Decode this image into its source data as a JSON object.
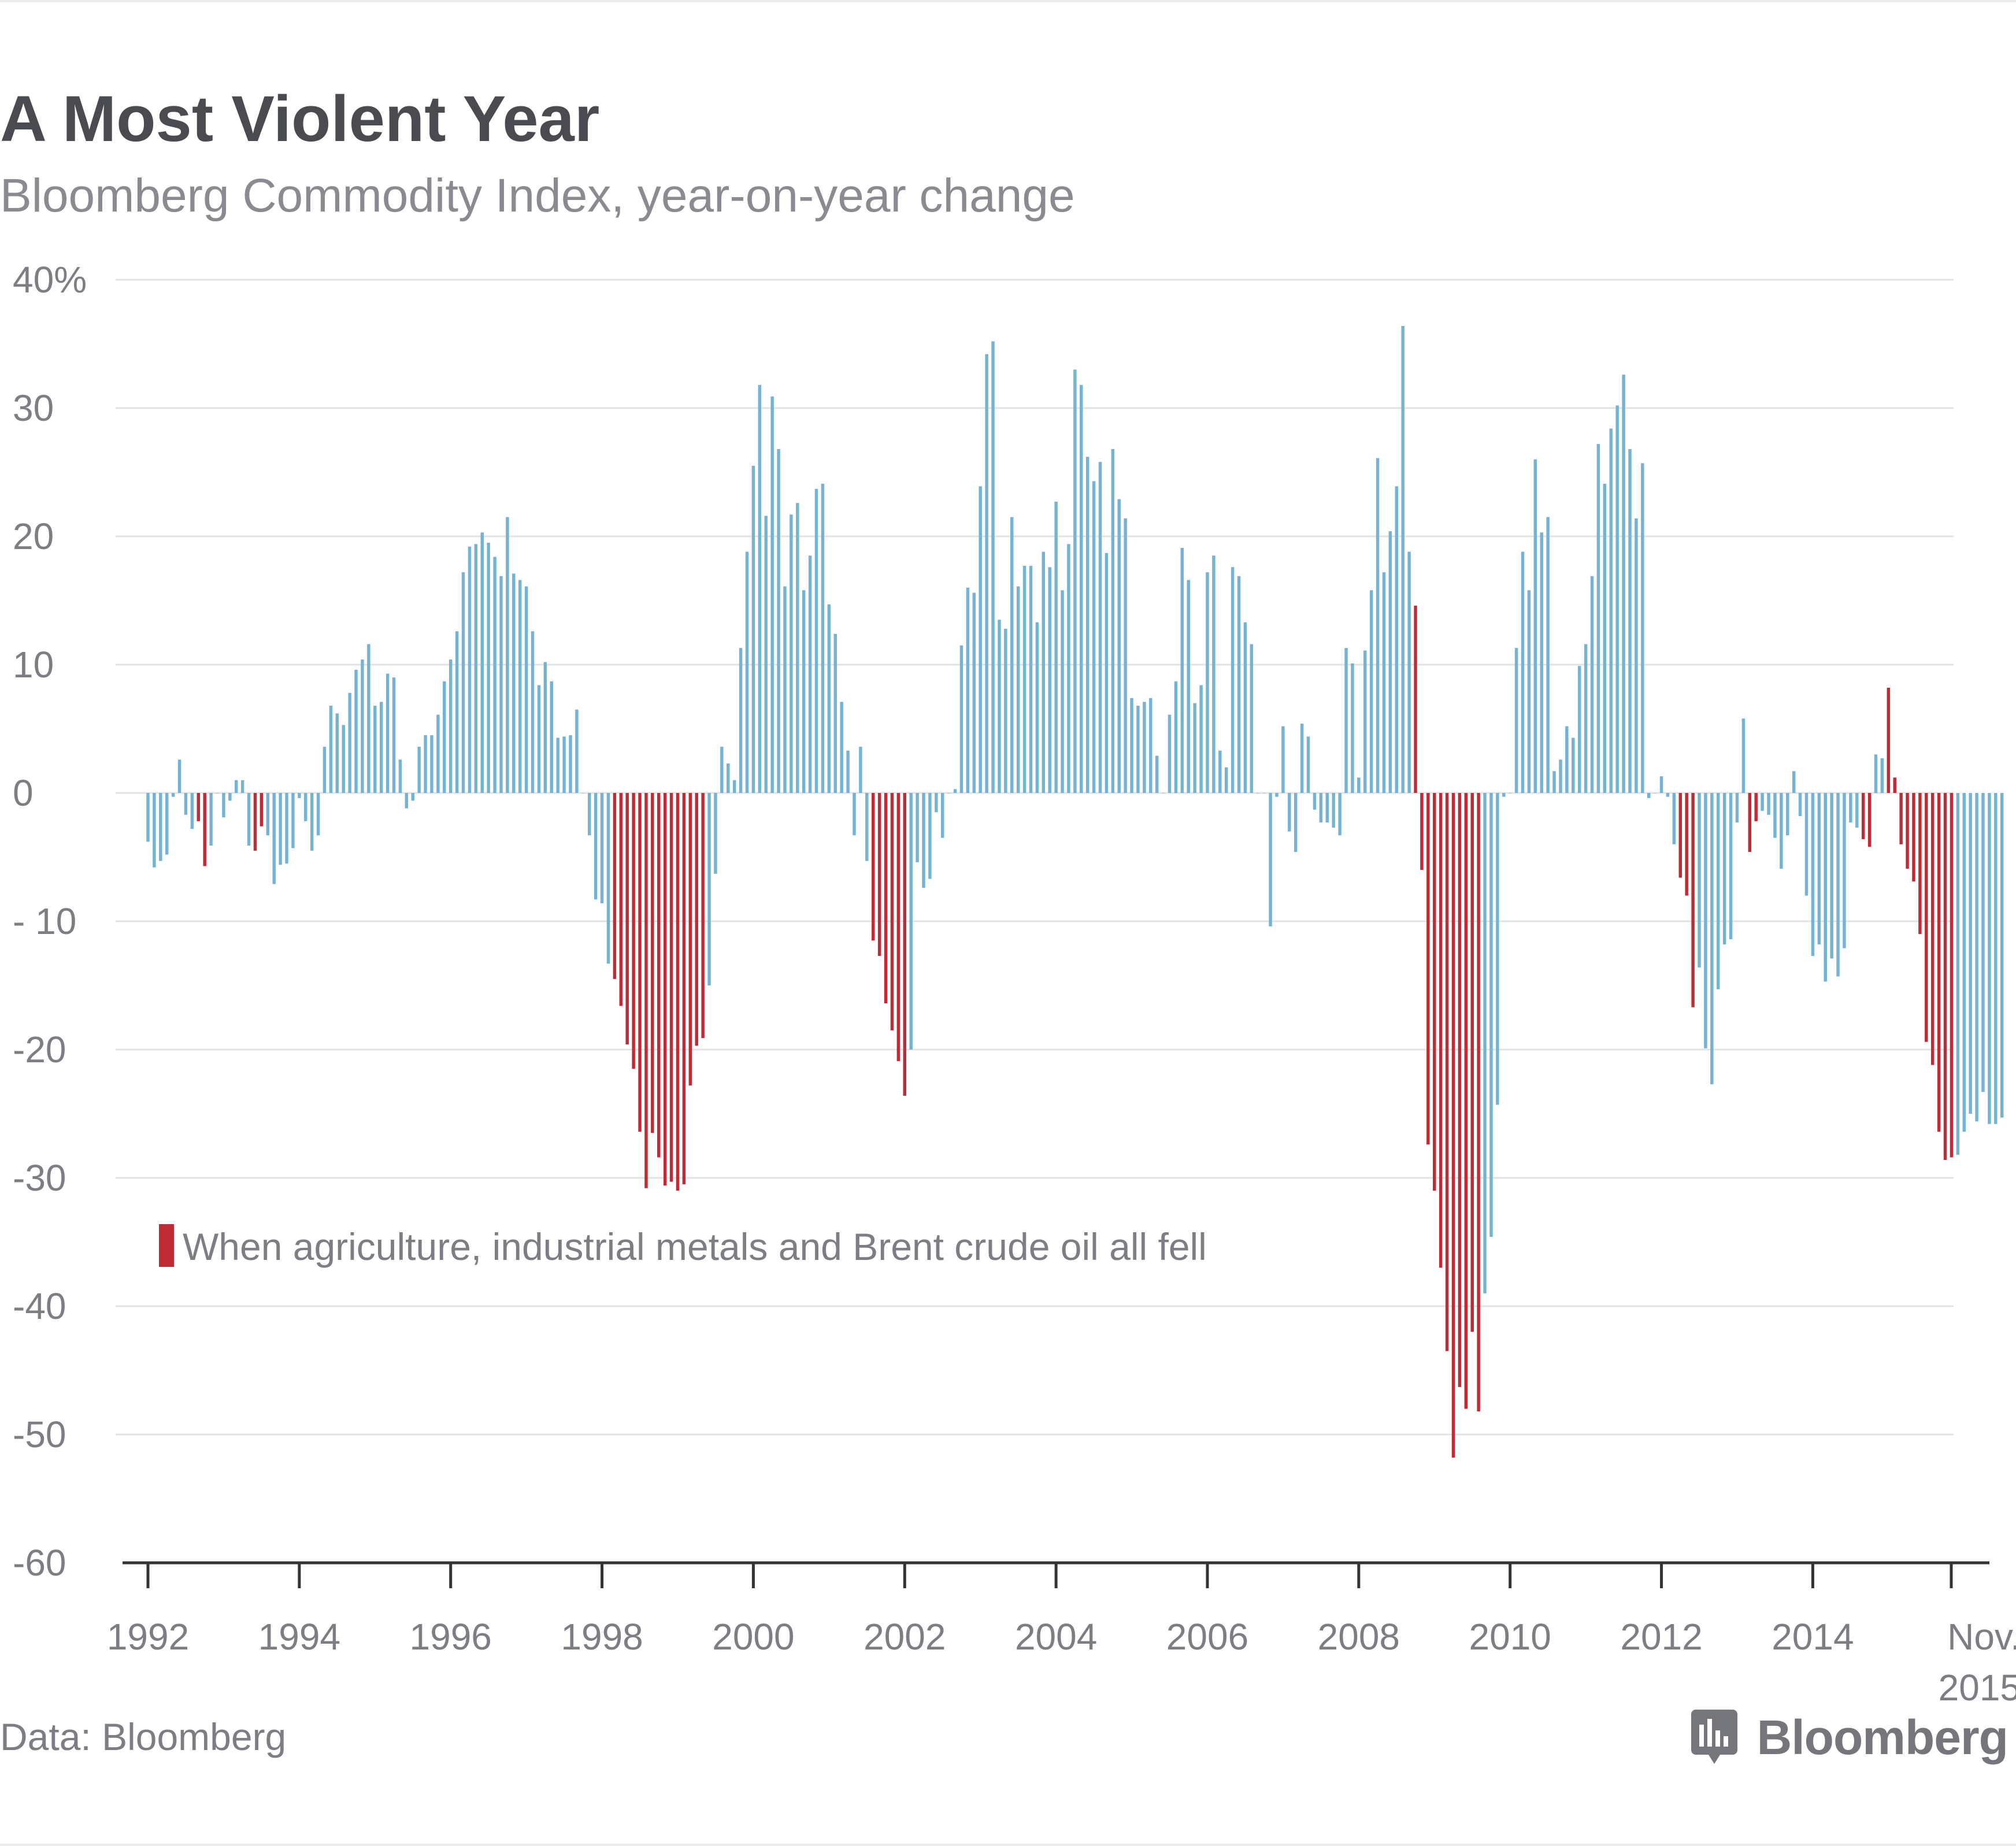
{
  "header": {
    "title": "A Most Violent Year",
    "subtitle": "Bloomberg Commodity Index, year-on-year change"
  },
  "footer": {
    "source": "Data: Bloomberg",
    "brand": "Bloomberg",
    "brand_icon": "bloomberg-chart-icon"
  },
  "colors": {
    "positive_or_mixed": "#74b3d4",
    "all_fell": "#c12b35",
    "grid": "#e3e3e3",
    "axis": "#333333",
    "text": "#7d7e83",
    "title": "#4a4b50"
  },
  "chart_data": {
    "type": "bar",
    "title": "A Most Violent Year",
    "subtitle": "Bloomberg Commodity Index, year-on-year change",
    "xlabel": "",
    "ylabel": "",
    "ylim": [
      -60,
      40
    ],
    "y_ticks": [
      40,
      30,
      20,
      10,
      0,
      -10,
      -20,
      -30,
      -40,
      -50,
      -60
    ],
    "y_tick_labels": [
      "40%",
      "30",
      "20",
      "10",
      "0",
      "- 10",
      "-20",
      "-30",
      "-40",
      "-50",
      "-60"
    ],
    "x_tick_labels": [
      "1992",
      "1994",
      "1996",
      "1998",
      "2000",
      "2002",
      "2004",
      "2006",
      "2008",
      "2010",
      "2012",
      "2014",
      "Nov. 2015"
    ],
    "x_tick_positions": [
      1992,
      1994,
      1996,
      1998,
      2000,
      2002,
      2004,
      2006,
      2008,
      2010,
      2012,
      2014,
      2015.83
    ],
    "xlim": [
      1992,
      2015.83
    ],
    "grid": true,
    "legend": {
      "label": "When agriculture, industrial metals and Brent crude oil all fell",
      "placement": "lower-left"
    },
    "frequency": "monthly",
    "series": [
      {
        "start": "1992-01",
        "values": [
          -3.8,
          -5.8,
          -5.3,
          -4.8,
          -0.3,
          2.6,
          -1.7,
          -2.8,
          -2.2,
          -5.7,
          -4.1,
          0,
          -1.9,
          -0.6,
          1.0,
          1.0,
          -4.1,
          -4.5,
          -2.6,
          -3.3,
          -7.1,
          -5.6,
          -5.5,
          -4.3,
          -0.4,
          -2.2,
          -4.5,
          -3.3,
          3.6,
          6.8,
          6.2,
          5.3,
          7.8,
          9.6,
          10.4,
          11.6,
          6.8,
          7.1,
          9.3,
          9.0,
          2.6,
          -1.2,
          -0.6,
          3.6,
          4.5,
          4.5,
          6.1,
          8.7,
          10.4,
          12.6,
          17.2,
          19.2,
          19.4,
          20.3,
          19.5,
          18.4,
          16.9,
          21.5,
          17.1,
          16.6,
          16.1,
          12.6,
          8.4,
          10.2,
          8.7,
          4.3,
          4.4,
          4.5,
          6.5,
          0,
          -3.3,
          -8.3,
          -8.6,
          -13.3,
          -14.5,
          -16.6,
          -19.6,
          -21.5,
          -26.4,
          -30.8,
          -26.5,
          -28.4,
          -30.6,
          -30.3,
          -31.0,
          -30.5,
          -22.8,
          -19.7,
          -19.1,
          -15.0,
          -6.3,
          3.6,
          2.3,
          1.0,
          11.3,
          18.8,
          25.5,
          31.8,
          21.6,
          30.9,
          26.8,
          16.1,
          21.7,
          22.6,
          15.8,
          18.5,
          23.7,
          24.1,
          14.7,
          12.4,
          7.1,
          3.3,
          -3.3,
          3.6,
          -5.3,
          -11.5,
          -12.7,
          -16.4,
          -18.5,
          -20.9,
          -23.6,
          -20.0,
          -5.4,
          -7.4,
          -6.7,
          -1.5,
          -3.5,
          0,
          0.3,
          11.5,
          16.0,
          15.6,
          23.9,
          34.2,
          35.2,
          13.5,
          12.8,
          21.5,
          16.1,
          17.7,
          17.7,
          13.3,
          18.8,
          17.6,
          22.7,
          15.8,
          19.4,
          33.0,
          31.8,
          26.2,
          24.3,
          25.8,
          18.7,
          26.8,
          22.9,
          21.4,
          7.4,
          6.8,
          7.1,
          7.4,
          2.9,
          0,
          6.1,
          8.7,
          19.1,
          16.6,
          7.0,
          8.4,
          17.2,
          18.5,
          3.3,
          2.0,
          17.6,
          16.9,
          13.3,
          11.6,
          0,
          0,
          -10.4,
          -0.3,
          5.2,
          -3.0,
          -4.6,
          5.4,
          4.4,
          -1.3,
          -2.3,
          -2.3,
          -2.7,
          -3.3,
          11.3,
          10.1,
          1.2,
          11.1,
          15.8,
          26.1,
          17.2,
          20.4,
          23.9,
          36.4,
          18.8,
          14.6,
          -6.0,
          -27.4,
          -31.0,
          -37.0,
          -43.5,
          -51.8,
          -46.3,
          -48.0,
          -42.0,
          -48.2,
          -39.0,
          -34.6,
          -24.3,
          -0.3,
          0,
          11.3,
          18.8,
          15.8,
          26.0,
          20.3,
          21.5,
          1.7,
          2.6,
          5.2,
          4.3,
          9.9,
          11.6,
          16.9,
          27.2,
          24.1,
          28.4,
          30.2,
          32.6,
          26.8,
          21.4,
          25.7,
          -0.4,
          0,
          1.3,
          -0.3,
          -4.0,
          -6.6,
          -8.0,
          -16.7,
          -13.6,
          -19.9,
          -22.7,
          -15.3,
          -11.8,
          -11.4,
          -2.3,
          5.8,
          -4.6,
          -2.2,
          -1.4,
          -1.7,
          -3.5,
          -5.9,
          -3.3,
          1.7,
          -1.8,
          -8.0,
          -12.7,
          -11.8,
          -14.7,
          -12.9,
          -14.3,
          -12.1,
          -2.3,
          -2.7,
          -3.6,
          -4.2,
          3.0,
          2.7,
          8.2,
          1.2,
          -4.0,
          -5.9,
          -6.9,
          -11.0,
          -19.4,
          -21.2,
          -26.4,
          -28.6,
          -28.4,
          -28.2,
          -26.4,
          -25.0,
          -25.6,
          -23.3,
          -25.8,
          -25.8,
          -25.3
        ]
      }
    ],
    "all_fell_ranges": [
      [
        "1992-09",
        "1992-10"
      ],
      [
        "1993-06",
        "1993-07"
      ],
      [
        "1998-03",
        "1999-05"
      ],
      [
        "2001-08",
        "2002-01"
      ],
      [
        "2008-10",
        "2009-08"
      ],
      [
        "2012-04",
        "2012-06"
      ],
      [
        "2013-03",
        "2013-04"
      ],
      [
        "2014-09",
        "2014-10"
      ],
      [
        "2015-01",
        "2015-11"
      ]
    ]
  }
}
